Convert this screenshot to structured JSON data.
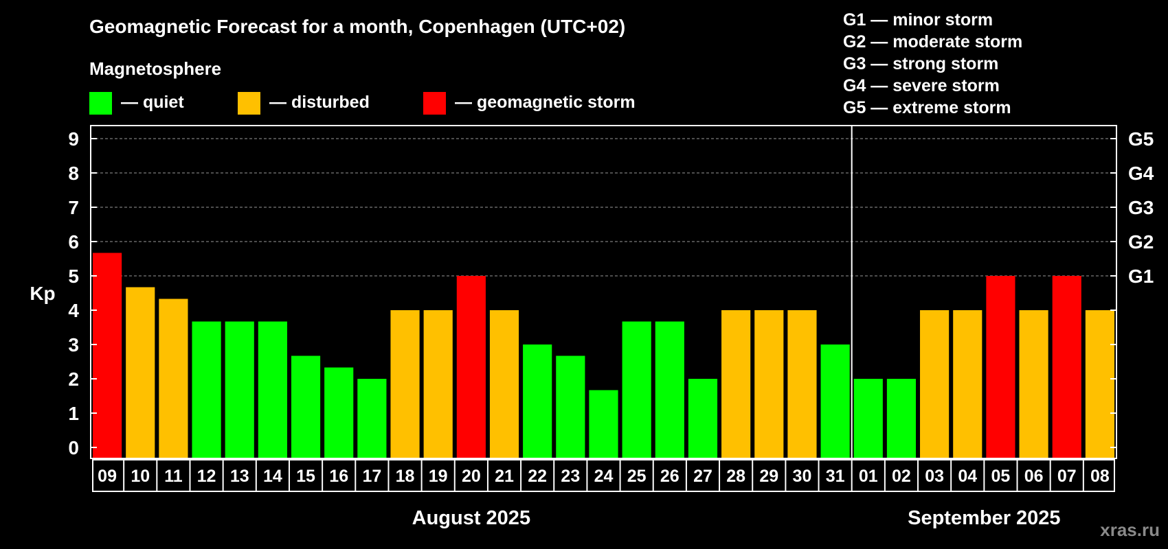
{
  "chart_data": {
    "type": "bar",
    "title": "Geomagnetic Forecast for a month, Copenhagen (UTC+02)",
    "subtitle": "Magnetosphere",
    "ylabel": "Kp",
    "ylim": [
      0,
      9
    ],
    "yticks": [
      "0",
      "1",
      "2",
      "3",
      "4",
      "5",
      "6",
      "7",
      "8",
      "9"
    ],
    "right_ticks": [
      {
        "kp": 5,
        "label": "G1"
      },
      {
        "kp": 6,
        "label": "G2"
      },
      {
        "kp": 7,
        "label": "G3"
      },
      {
        "kp": 8,
        "label": "G4"
      },
      {
        "kp": 9,
        "label": "G5"
      }
    ],
    "grid": true,
    "status_legend": [
      {
        "key": "quiet",
        "label": "— quiet",
        "color": "#00ff00"
      },
      {
        "key": "disturbed",
        "label": "— disturbed",
        "color": "#ffc000"
      },
      {
        "key": "storm",
        "label": "— geomagnetic storm",
        "color": "#ff0000"
      }
    ],
    "storm_scale": [
      "G1 — minor storm",
      "G2 — moderate storm",
      "G3 — strong storm",
      "G4 — severe storm",
      "G5 — extreme storm"
    ],
    "categories": [
      "09",
      "10",
      "11",
      "12",
      "13",
      "14",
      "15",
      "16",
      "17",
      "18",
      "19",
      "20",
      "21",
      "22",
      "23",
      "24",
      "25",
      "26",
      "27",
      "28",
      "29",
      "30",
      "31",
      "01",
      "02",
      "03",
      "04",
      "05",
      "06",
      "07",
      "08"
    ],
    "values": [
      5.67,
      4.67,
      4.33,
      3.67,
      3.67,
      3.67,
      2.67,
      2.33,
      2.0,
      4.0,
      4.0,
      5.0,
      4.0,
      3.0,
      2.67,
      1.67,
      3.67,
      3.67,
      2.0,
      4.0,
      4.0,
      4.0,
      3.0,
      2.0,
      2.0,
      4.0,
      4.0,
      5.0,
      4.0,
      5.0,
      4.0
    ],
    "status": [
      "storm",
      "disturbed",
      "disturbed",
      "quiet",
      "quiet",
      "quiet",
      "quiet",
      "quiet",
      "quiet",
      "disturbed",
      "disturbed",
      "storm",
      "disturbed",
      "quiet",
      "quiet",
      "quiet",
      "quiet",
      "quiet",
      "quiet",
      "disturbed",
      "disturbed",
      "disturbed",
      "quiet",
      "quiet",
      "quiet",
      "disturbed",
      "disturbed",
      "storm",
      "disturbed",
      "storm",
      "disturbed"
    ],
    "months": [
      {
        "label": "August 2025",
        "start": 0,
        "count": 23
      },
      {
        "label": "September 2025",
        "start": 23,
        "count": 8
      }
    ]
  },
  "watermark": "xras.ru"
}
